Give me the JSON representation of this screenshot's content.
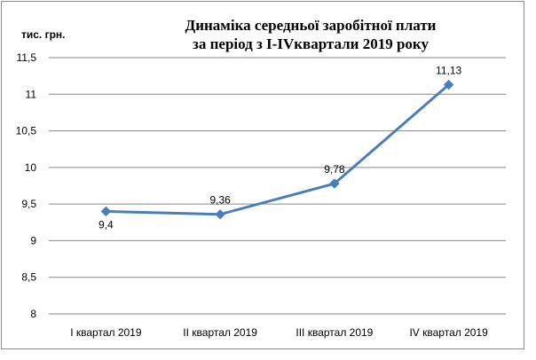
{
  "chart_data": {
    "type": "line",
    "title_lines": [
      "Динаміка середньої заробітної плати",
      "за період з I-IVквартали 2019 року"
    ],
    "ylabel": "тис. грн.",
    "categories": [
      "I квартал 2019",
      "II квартал 2019",
      "III квартал 2019",
      "IV квартал 2019"
    ],
    "series": [
      {
        "values": [
          9.4,
          9.36,
          9.78,
          11.13
        ],
        "labels": [
          "9,4",
          "9,36",
          "9,78",
          "11,13"
        ],
        "color": "#4a7ebb"
      }
    ],
    "ylim": [
      8,
      11.5
    ],
    "yticks": [
      8,
      8.5,
      9,
      9.5,
      10,
      10.5,
      11,
      11.5
    ],
    "ytick_labels": [
      "8",
      "8,5",
      "9",
      "9,5",
      "10",
      "10,5",
      "11",
      "11,5"
    ],
    "grid": true,
    "gridline_color": "#868686",
    "label_position": [
      "below",
      "above",
      "above",
      "above"
    ]
  }
}
